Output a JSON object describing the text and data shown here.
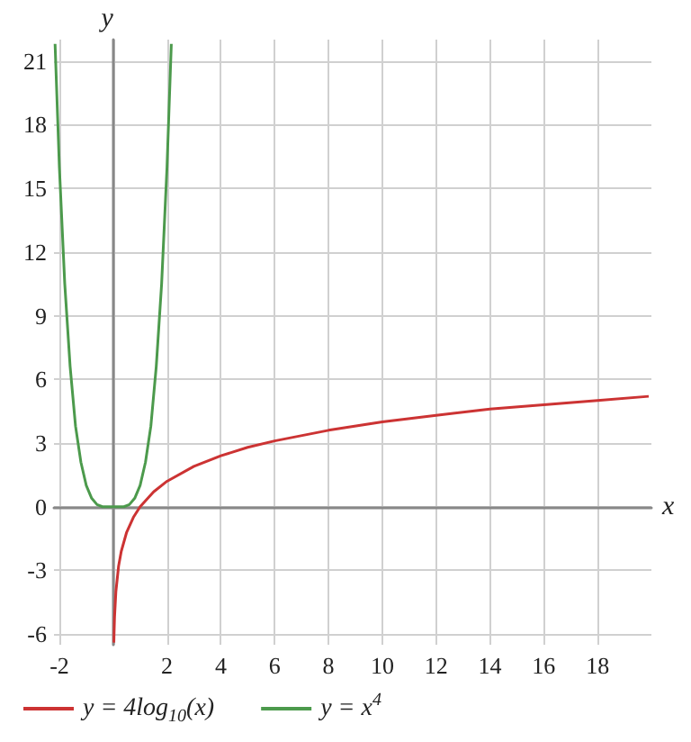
{
  "chart_data": {
    "type": "line",
    "xlabel": "x",
    "ylabel": "y",
    "xlim": [
      -2.2,
      20
    ],
    "ylim": [
      -6.5,
      22
    ],
    "xticks": [
      -2,
      {
        "value": 0,
        "label": null
      },
      2,
      4,
      6,
      8,
      10,
      12,
      14,
      16,
      18
    ],
    "yticks": [
      -6,
      -3,
      0,
      3,
      6,
      9,
      12,
      15,
      18,
      21
    ],
    "grid": true,
    "legend": "bottom left",
    "marker": "none",
    "line_style": "solid",
    "series": [
      {
        "name": "y = 4log$_{10}$(x)",
        "color": "#cc3333",
        "x": [
          0.025,
          0.032,
          0.05,
          0.1,
          0.2,
          0.3,
          0.5,
          0.75,
          1,
          1.5,
          2,
          3,
          4,
          5,
          6,
          8,
          10,
          12,
          14,
          16,
          18,
          19.9
        ],
        "values": [
          -6.4,
          -6,
          -5.2,
          -4,
          -2.8,
          -2.1,
          -1.2,
          -0.5,
          0,
          0.7,
          1.2,
          1.9,
          2.4,
          2.8,
          3.1,
          3.6,
          4,
          4.3,
          4.6,
          4.8,
          5,
          5.2
        ]
      },
      {
        "name": "y = x$^{4}$",
        "color": "#4c9a4c",
        "x": [
          -2.16,
          -2,
          -1.8,
          -1.6,
          -1.4,
          -1.2,
          -1,
          -0.8,
          -0.6,
          -0.4,
          -0.2,
          0,
          0.2,
          0.4,
          0.6,
          0.8,
          1,
          1.2,
          1.4,
          1.6,
          1.8,
          2,
          2.16
        ],
        "values": [
          21.8,
          16,
          10.5,
          6.6,
          3.8,
          2.1,
          1,
          0.4,
          0.1,
          0,
          0,
          0,
          0,
          0,
          0.1,
          0.4,
          1,
          2.1,
          3.8,
          6.6,
          10.5,
          16,
          21.8
        ]
      }
    ]
  }
}
